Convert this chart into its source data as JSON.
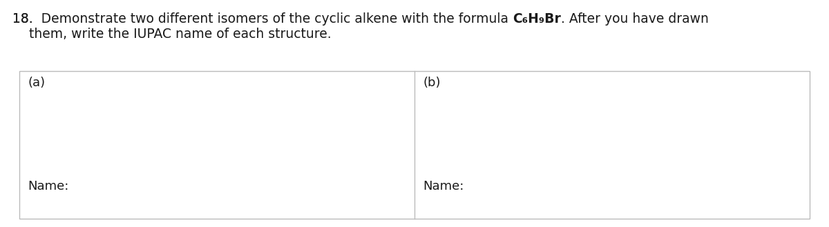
{
  "question_number": "18.",
  "text_before_formula": "  Demonstrate two different isomers of the cyclic alkene with the formula ",
  "formula": "C₆H₉Br",
  "text_after_formula": ". After you have drawn",
  "text_line2": "    them, write the IUPAC name of each structure.",
  "label_a": "(a)",
  "label_b": "(b)",
  "name_label": "Name:",
  "bg_color": "#ffffff",
  "text_color": "#1a1a1a",
  "box_edge_color": "#bbbbbb",
  "font_size": 13.5,
  "font_size_box": 13,
  "fig_width": 12.0,
  "fig_height": 3.29,
  "dpi": 100
}
